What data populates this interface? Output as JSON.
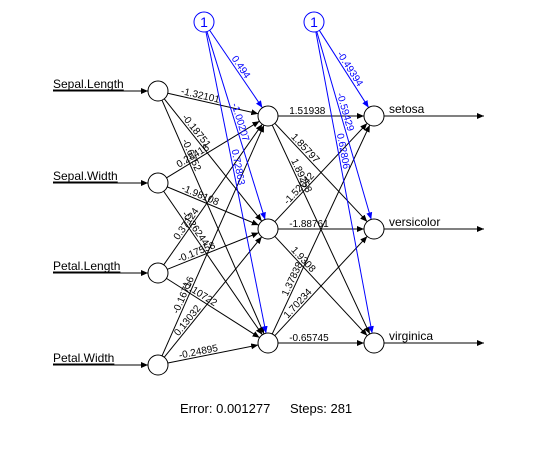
{
  "inputs": [
    "Sepal.Length",
    "Sepal.Width",
    "Petal.Length",
    "Petal.Width"
  ],
  "outputs": [
    "setosa",
    "versicolor",
    "virginica"
  ],
  "bias_label": "1",
  "weights": {
    "input_to_hidden": [
      [
        "-1.32101",
        "-0.18751",
        "-0.6752"
      ],
      [
        "0.28416",
        "-1.98108",
        "-0.26244"
      ],
      [
        "0.37124",
        "-0.17558",
        "-0.10722"
      ],
      [
        "-0.16716",
        "0.13032",
        "-0.24895"
      ]
    ],
    "bias_to_hidden": [
      "0.494",
      "-1.00207",
      "0.72863"
    ],
    "hidden_to_output": [
      [
        "1.51938",
        "1.85797",
        "1.89258"
      ],
      [
        "-1.52042",
        "-1.88761",
        "1.9308"
      ],
      [
        "1.37838",
        "1.70234",
        "-0.65745"
      ]
    ],
    "bias_to_output": [
      "-0.49394",
      "-0.59429",
      "0.62806"
    ]
  },
  "footer": {
    "error_text": "Error: 0.001277",
    "steps_text": "Steps: 281"
  },
  "colors": {
    "neuron_edge": "#000000",
    "bias": "#0000ff"
  }
}
